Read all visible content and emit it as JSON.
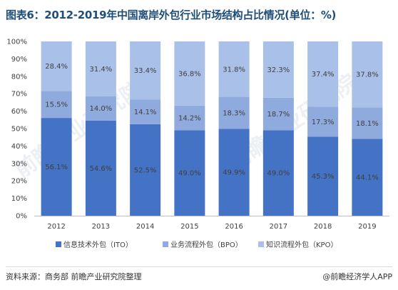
{
  "title": "图表6：2012-2019年中国离岸外包行业市场结构占比情况(单位：%)",
  "footer": {
    "source": "资料来源：商务部 前瞻产业研究院整理",
    "credit": "@前瞻经济学人APP"
  },
  "watermark": "前瞻产业研究院",
  "colors": {
    "ITO": "#4472c4",
    "BPO": "#8faadc",
    "KPO": "#a9c1e8",
    "text": "#404040",
    "title": "#1f4e79"
  },
  "chart_data": {
    "type": "bar",
    "stacked": true,
    "categories": [
      "2012",
      "2013",
      "2014",
      "2015",
      "2016",
      "2017",
      "2018",
      "2019"
    ],
    "ylim": [
      0,
      100
    ],
    "yticks": [
      "0%",
      "10%",
      "20%",
      "30%",
      "40%",
      "50%",
      "60%",
      "70%",
      "80%",
      "90%",
      "100%"
    ],
    "series": [
      {
        "name": "信息技术外包（ITO）",
        "key": "ITO",
        "values": [
          56.1,
          54.6,
          52.5,
          49.0,
          49.9,
          49.0,
          45.3,
          44.1
        ],
        "labels": [
          "56.1%",
          "54.6%",
          "52.5%",
          "49.0%",
          "49.9%",
          "49.0%",
          "45.3%",
          "44.1%"
        ]
      },
      {
        "name": "业务流程外包（BPO）",
        "key": "BPO",
        "values": [
          15.5,
          14.0,
          14.1,
          14.2,
          18.3,
          18.7,
          17.3,
          18.1
        ],
        "labels": [
          "15.5%",
          "14.0%",
          "14.1%",
          "14.2%",
          "18.3%",
          "18.7%",
          "17.3%",
          "18.1%"
        ]
      },
      {
        "name": "知识流程外包（KPO）",
        "key": "KPO",
        "values": [
          28.4,
          31.4,
          33.4,
          36.8,
          31.8,
          32.3,
          37.4,
          37.8
        ],
        "labels": [
          "28.4%",
          "31.4%",
          "33.4%",
          "36.8%",
          "31.8%",
          "32.3%",
          "37.4%",
          "37.8%"
        ]
      }
    ],
    "legend": "bottom"
  }
}
